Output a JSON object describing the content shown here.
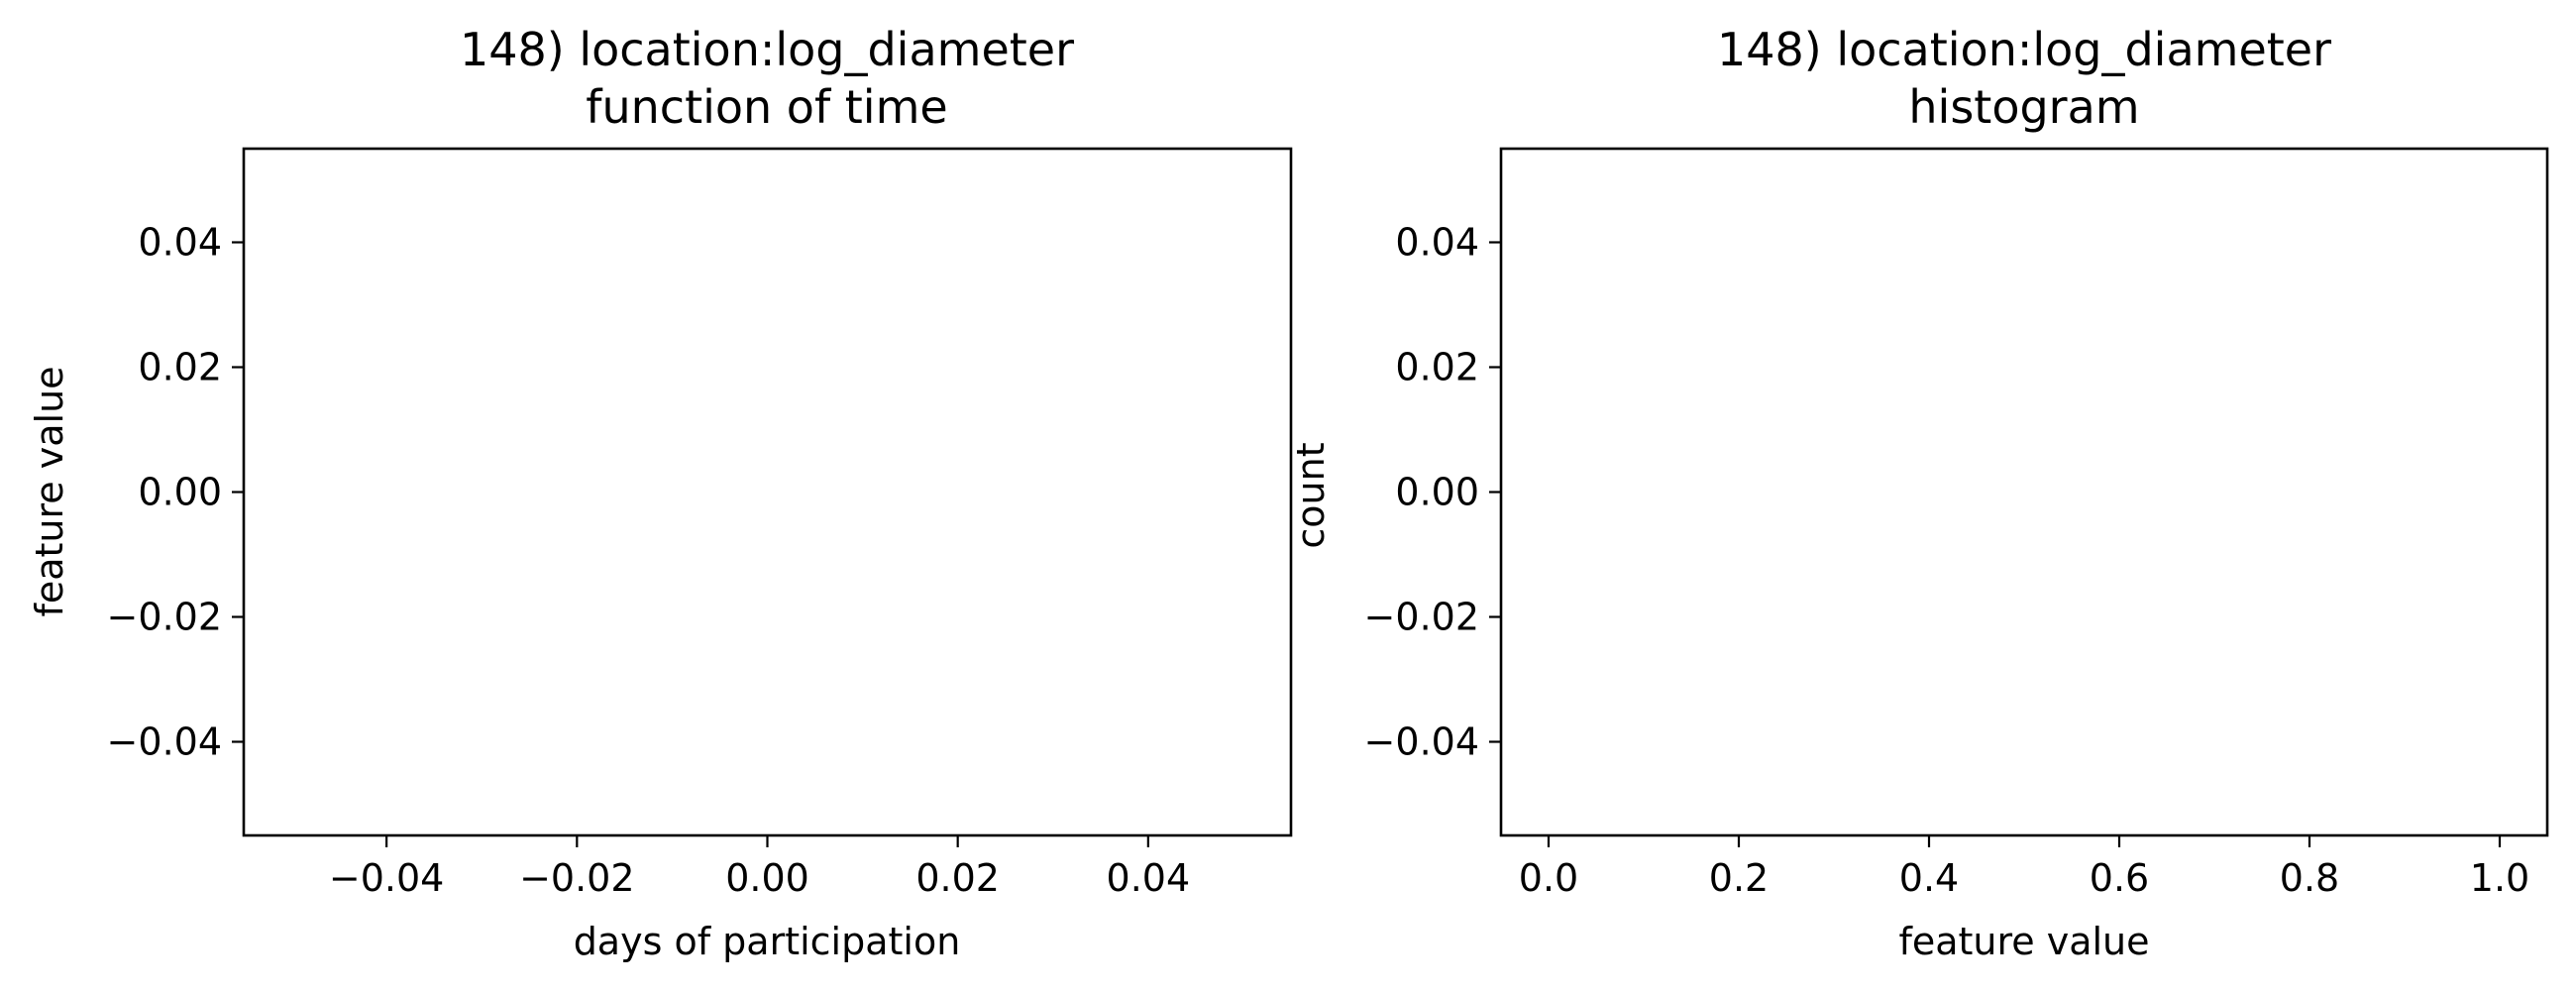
{
  "chart_data": [
    {
      "type": "line",
      "title": "148) location:log_diameter\nfunction of time",
      "xlabel": "days of participation",
      "ylabel": "feature value",
      "xlim": [
        -0.055,
        0.055
      ],
      "ylim": [
        -0.055,
        0.055
      ],
      "xticks": [
        -0.04,
        -0.02,
        0.0,
        0.02,
        0.04
      ],
      "xtick_labels": [
        "−0.04",
        "−0.02",
        "0.00",
        "0.02",
        "0.04"
      ],
      "yticks": [
        0.04,
        0.02,
        0.0,
        -0.02,
        -0.04
      ],
      "ytick_labels": [
        "0.04",
        "0.02",
        "0.00",
        "−0.02",
        "−0.04"
      ],
      "grid": false,
      "series": []
    },
    {
      "type": "bar",
      "title": "148) location:log_diameter\nhistogram",
      "xlabel": "feature value",
      "ylabel": "count",
      "xlim": [
        -0.05,
        1.05
      ],
      "ylim": [
        -0.055,
        0.055
      ],
      "xticks": [
        0.0,
        0.2,
        0.4,
        0.6,
        0.8,
        1.0
      ],
      "xtick_labels": [
        "0.0",
        "0.2",
        "0.4",
        "0.6",
        "0.8",
        "1.0"
      ],
      "yticks": [
        0.04,
        0.02,
        0.0,
        -0.02,
        -0.04
      ],
      "ytick_labels": [
        "0.04",
        "0.02",
        "0.00",
        "−0.02",
        "−0.04"
      ],
      "grid": false,
      "series": []
    }
  ]
}
